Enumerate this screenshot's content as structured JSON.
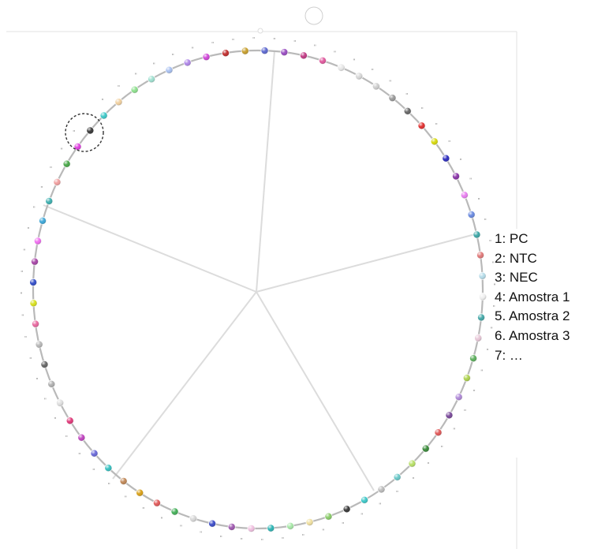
{
  "legend": {
    "items": [
      "1: PC",
      "2: NTC",
      "3: NEC",
      "4: Amostra 1",
      "5. Amostra 2",
      "6. Amostra 3",
      "7: …"
    ]
  },
  "rotor": {
    "position_count": 72,
    "marker_char": "\"",
    "highlighted_position_index": 60,
    "bead_colors": [
      "#5f6ad0",
      "#9a4fc2",
      "#c23d86",
      "#e05a9e",
      "#e8e8e8",
      "#d8d8d8",
      "#cfcfcf",
      "#9a9a9a",
      "#686868",
      "#e03131",
      "#d7d90f",
      "#2e2ebd",
      "#8a36a8",
      "#e87ff0",
      "#6a8ae0",
      "#3fa7a7",
      "#e07a7a",
      "#b5dbe8",
      "#f0f0f0",
      "#46a8a8",
      "#e8c8d8",
      "#5fb05f",
      "#aed24f",
      "#b08ad8",
      "#7a4a9a",
      "#e05a5a",
      "#3a8a3a",
      "#b8e068",
      "#6ac8c8",
      "#bcbcbc",
      "#40c8c8",
      "#3a3a3a",
      "#8acc6a",
      "#f0e0a0",
      "#a8e8a8",
      "#2fb5b5",
      "#f0c0e0",
      "#a05ab0",
      "#3e4ec8",
      "#d8d8d8",
      "#46b05a",
      "#e05a5a",
      "#d8a018",
      "#c08858",
      "#38c0c0",
      "#6a6ad8",
      "#c045c0",
      "#e03a7a",
      "#e0e0e0",
      "#b0b0b0",
      "#686868",
      "#b8b8b8",
      "#e86aa0",
      "#d8e020",
      "#3650c8",
      "#a848a8",
      "#f070f0",
      "#40a8d8",
      "#40b0b0",
      "#f0a0a0",
      "#4aa84a",
      "#e040e0",
      "#3a3a3a",
      "#40c8c8",
      "#f0d0a0",
      "#8ee08e",
      "#a0e0d0",
      "#a8c0f0",
      "#b088e8",
      "#d048d8",
      "#c03030",
      "#c8a030"
    ]
  }
}
